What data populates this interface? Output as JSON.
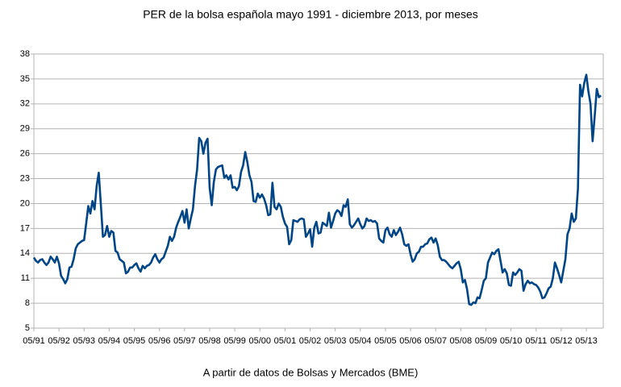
{
  "chart_data": {
    "type": "line",
    "title": "PER de la bolsa española mayo 1991 - diciembre 2013, por meses",
    "caption": "A partir de datos de Bolsas y Mercados (BME)",
    "color": "#004586",
    "grid": true,
    "ylim": [
      5,
      38
    ],
    "yticks": [
      5,
      8,
      11,
      14,
      17,
      20,
      23,
      26,
      29,
      32,
      35,
      38
    ],
    "categories": [
      "05/91",
      null,
      null,
      null,
      null,
      null,
      null,
      null,
      null,
      null,
      null,
      null,
      "05/92",
      null,
      null,
      null,
      null,
      null,
      null,
      null,
      null,
      null,
      null,
      null,
      "05/93",
      null,
      null,
      null,
      null,
      null,
      null,
      null,
      null,
      null,
      null,
      null,
      "05/94",
      null,
      null,
      null,
      null,
      null,
      null,
      null,
      null,
      null,
      null,
      null,
      "05/95",
      null,
      null,
      null,
      null,
      null,
      null,
      null,
      null,
      null,
      null,
      null,
      "05/96",
      null,
      null,
      null,
      null,
      null,
      null,
      null,
      null,
      null,
      null,
      null,
      "05/97",
      null,
      null,
      null,
      null,
      null,
      null,
      null,
      null,
      null,
      null,
      null,
      "05/98",
      null,
      null,
      null,
      null,
      null,
      null,
      null,
      null,
      null,
      null,
      null,
      "05/99",
      null,
      null,
      null,
      null,
      null,
      null,
      null,
      null,
      null,
      null,
      null,
      "05/00",
      null,
      null,
      null,
      null,
      null,
      null,
      null,
      null,
      null,
      null,
      null,
      "05/01",
      null,
      null,
      null,
      null,
      null,
      null,
      null,
      null,
      null,
      null,
      null,
      "05/02",
      null,
      null,
      null,
      null,
      null,
      null,
      null,
      null,
      null,
      null,
      null,
      "05/03",
      null,
      null,
      null,
      null,
      null,
      null,
      null,
      null,
      null,
      null,
      null,
      "05/04",
      null,
      null,
      null,
      null,
      null,
      null,
      null,
      null,
      null,
      null,
      null,
      "05/05",
      null,
      null,
      null,
      null,
      null,
      null,
      null,
      null,
      null,
      null,
      null,
      "05/06",
      null,
      null,
      null,
      null,
      null,
      null,
      null,
      null,
      null,
      null,
      null,
      "05/07",
      null,
      null,
      null,
      null,
      null,
      null,
      null,
      null,
      null,
      null,
      null,
      "05/08",
      null,
      null,
      null,
      null,
      null,
      null,
      null,
      null,
      null,
      null,
      null,
      "05/09",
      null,
      null,
      null,
      null,
      null,
      null,
      null,
      null,
      null,
      null,
      null,
      "05/10",
      null,
      null,
      null,
      null,
      null,
      null,
      null,
      null,
      null,
      null,
      null,
      "05/11",
      null,
      null,
      null,
      null,
      null,
      null,
      null,
      null,
      null,
      null,
      null,
      "05/12",
      null,
      null,
      null,
      null,
      null,
      null,
      null,
      null,
      null,
      null,
      null,
      "05/13",
      null,
      null,
      null,
      null,
      null,
      null,
      null
    ],
    "values": [
      13.5,
      13.1,
      12.9,
      13.2,
      13.3,
      12.9,
      12.6,
      12.9,
      13.6,
      13.3,
      12.9,
      13.6,
      12.8,
      11.3,
      10.9,
      10.4,
      10.9,
      12.3,
      12.4,
      13.3,
      14.6,
      15.1,
      15.3,
      15.5,
      15.6,
      17.6,
      19.7,
      18.8,
      20.3,
      19.3,
      22.1,
      23.7,
      19.9,
      16.0,
      16.2,
      17.3,
      16.0,
      16.7,
      16.5,
      14.3,
      14.1,
      13.3,
      13.1,
      12.9,
      11.6,
      11.8,
      12.3,
      12.3,
      12.6,
      12.8,
      12.2,
      11.8,
      12.5,
      12.2,
      12.5,
      12.6,
      12.9,
      13.5,
      13.9,
      13.3,
      12.9,
      13.3,
      13.5,
      14.2,
      14.9,
      16.0,
      15.5,
      16.0,
      17.1,
      17.8,
      18.4,
      19.1,
      17.7,
      19.3,
      17.0,
      18.2,
      19.3,
      22.1,
      24.1,
      27.9,
      27.5,
      26.0,
      27.3,
      27.8,
      21.9,
      19.8,
      22.6,
      24.1,
      24.4,
      24.5,
      24.6,
      23.1,
      23.4,
      22.9,
      23.4,
      21.9,
      22.0,
      21.6,
      22.1,
      23.8,
      24.6,
      26.2,
      25.0,
      23.4,
      22.6,
      20.3,
      20.2,
      21.2,
      20.7,
      21.1,
      20.6,
      19.8,
      18.6,
      18.7,
      22.5,
      19.6,
      19.3,
      20.0,
      19.6,
      18.4,
      17.6,
      17.2,
      15.1,
      15.6,
      18.0,
      17.9,
      17.8,
      18.1,
      18.2,
      18.1,
      16.0,
      16.4,
      16.9,
      14.8,
      17.1,
      17.8,
      16.4,
      16.5,
      17.7,
      17.5,
      17.3,
      18.9,
      17.1,
      17.9,
      18.8,
      19.2,
      19.0,
      18.5,
      19.8,
      19.6,
      20.5,
      17.5,
      17.1,
      17.4,
      17.8,
      18.2,
      17.5,
      17.0,
      17.3,
      18.2,
      17.9,
      18.0,
      17.8,
      17.9,
      17.6,
      15.8,
      15.5,
      15.3,
      16.8,
      17.1,
      16.3,
      16.0,
      16.8,
      16.2,
      16.6,
      17.1,
      16.3,
      15.1,
      14.9,
      15.1,
      13.9,
      13.0,
      13.3,
      14.0,
      14.2,
      14.8,
      14.8,
      15.1,
      15.2,
      15.7,
      15.9,
      15.3,
      15.8,
      15.0,
      13.6,
      13.2,
      13.2,
      13.0,
      12.7,
      12.4,
      12.2,
      12.5,
      12.8,
      13.0,
      12.1,
      10.5,
      10.8,
      9.7,
      7.9,
      7.8,
      8.1,
      8.0,
      8.7,
      8.6,
      9.6,
      10.7,
      11.0,
      12.9,
      13.5,
      14.1,
      13.9,
      14.3,
      14.5,
      13.1,
      11.7,
      12.1,
      11.6,
      10.2,
      10.1,
      11.7,
      11.4,
      11.7,
      12.1,
      11.9,
      9.5,
      10.3,
      10.7,
      10.4,
      10.5,
      10.3,
      10.2,
      9.9,
      9.4,
      8.6,
      8.7,
      9.2,
      9.8,
      10.0,
      11.0,
      12.9,
      12.2,
      11.4,
      10.5,
      11.9,
      13.3,
      16.3,
      17.0,
      18.8,
      17.8,
      18.2,
      21.8,
      34.3,
      32.9,
      34.5,
      35.5,
      33.5,
      32.0,
      27.5,
      30.5,
      33.8,
      32.8,
      33.0
    ]
  }
}
